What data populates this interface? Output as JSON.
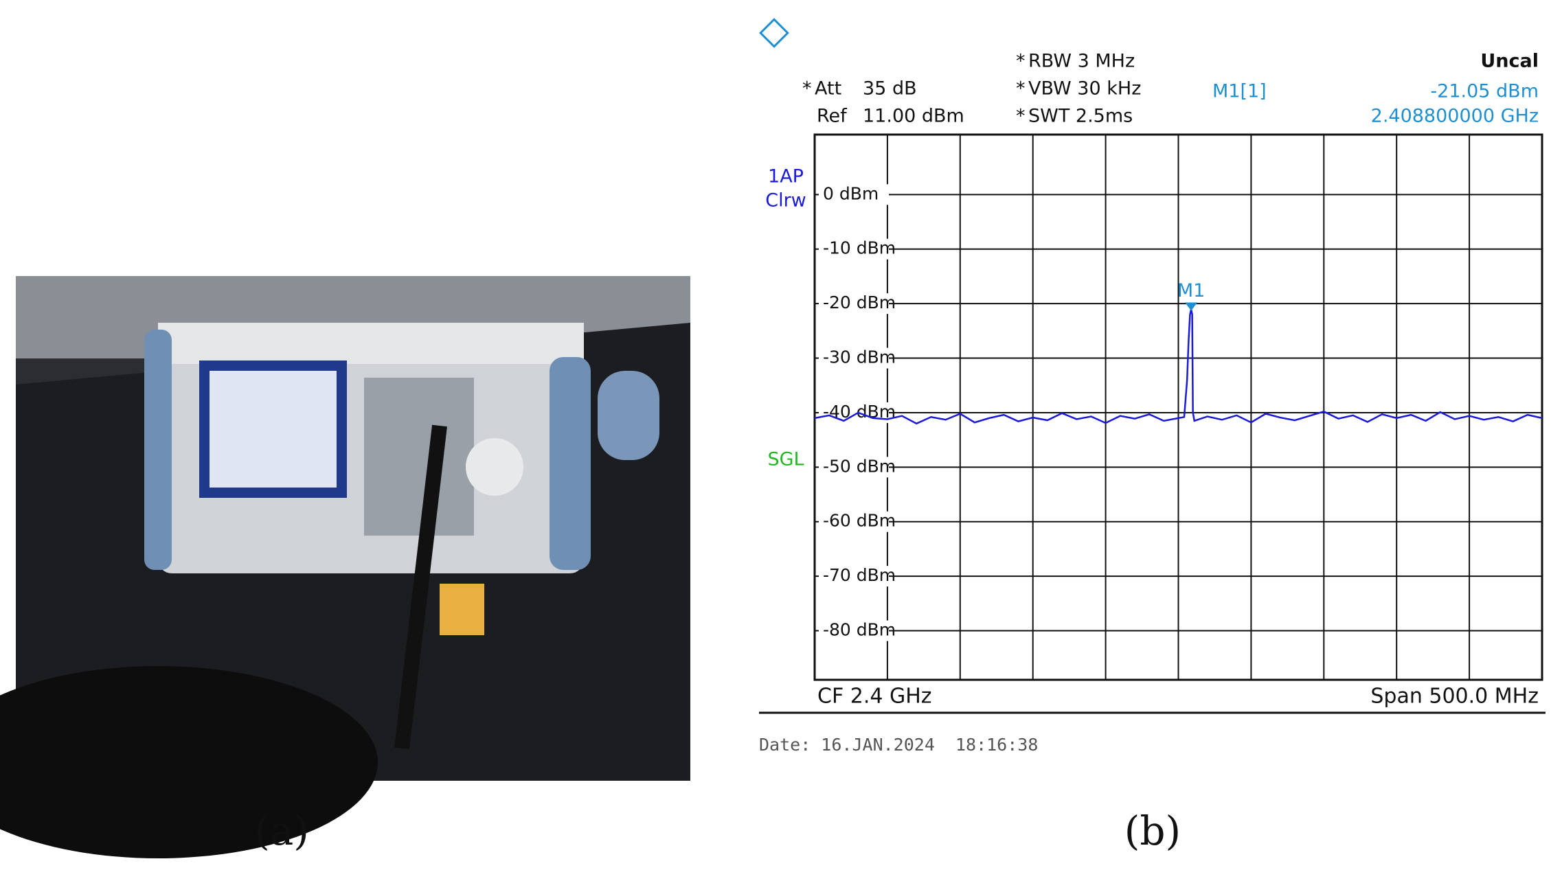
{
  "figure": {
    "panels": [
      "(a)",
      "(b)"
    ]
  },
  "chart_data": {
    "type": "line",
    "header": {
      "att": {
        "star": "*",
        "star_color": "#22b822",
        "label": "Att",
        "value": "35 dB"
      },
      "ref": {
        "label": "Ref",
        "value": "11.00 dBm"
      },
      "settings": [
        {
          "star": "*",
          "star_color": "#22b822",
          "text": "RBW 3 MHz"
        },
        {
          "star": "*",
          "star_color": "#22b822",
          "text": "VBW 30 kHz"
        },
        {
          "star": "*",
          "star_color": "#e02020",
          "text": "SWT 2.5ms"
        }
      ],
      "status": "Uncal",
      "status_color": "#e01010",
      "trace_info": [
        "1AP",
        "Clrw"
      ],
      "sweep": "SGL"
    },
    "marker": {
      "label": "M1",
      "name": "M1[1]",
      "x": 2.4088,
      "value": -21.05,
      "value_label": "-21.05 dBm",
      "x_label": "2.408800000 GHz",
      "color": "#1e8fd0"
    },
    "footer": {
      "center": "CF 2.4 GHz",
      "span": "Span 500.0 MHz",
      "date": "Date: 16.JAN.2024  18:16:38"
    },
    "xlim": [
      2.15,
      2.65
    ],
    "xgrid": [
      2.15,
      2.2,
      2.25,
      2.3,
      2.35,
      2.4,
      2.45,
      2.5,
      2.55,
      2.6,
      2.65
    ],
    "ylim": [
      -89,
      11
    ],
    "yticks": [
      {
        "value": 0,
        "label": "0 dBm"
      },
      {
        "value": -10,
        "label": "-10 dBm"
      },
      {
        "value": -20,
        "label": "-20 dBm"
      },
      {
        "value": -30,
        "label": "-30 dBm"
      },
      {
        "value": -40,
        "label": "-40 dBm"
      },
      {
        "value": -50,
        "label": "-50 dBm"
      },
      {
        "value": -60,
        "label": "-60 dBm"
      },
      {
        "value": -70,
        "label": "-70 dBm"
      },
      {
        "value": -80,
        "label": "-80 dBm"
      }
    ],
    "grid": true,
    "series": [
      {
        "name": "1AP",
        "color": "#1a1ad8",
        "x": [
          2.15,
          2.16,
          2.17,
          2.18,
          2.19,
          2.2,
          2.21,
          2.22,
          2.23,
          2.24,
          2.25,
          2.26,
          2.27,
          2.28,
          2.29,
          2.3,
          2.31,
          2.32,
          2.33,
          2.34,
          2.35,
          2.36,
          2.37,
          2.38,
          2.39,
          2.4,
          2.404,
          2.406,
          2.407,
          2.408,
          2.4088,
          2.4095,
          2.41,
          2.411,
          2.42,
          2.43,
          2.44,
          2.45,
          2.46,
          2.47,
          2.48,
          2.49,
          2.5,
          2.51,
          2.52,
          2.53,
          2.54,
          2.55,
          2.56,
          2.57,
          2.58,
          2.59,
          2.6,
          2.61,
          2.62,
          2.63,
          2.64,
          2.65
        ],
        "values": [
          -41,
          -40.5,
          -41.5,
          -40,
          -41,
          -41.2,
          -40.6,
          -42,
          -40.8,
          -41.3,
          -40.2,
          -41.8,
          -41,
          -40.4,
          -41.6,
          -40.9,
          -41.4,
          -40.1,
          -41.2,
          -40.7,
          -41.9,
          -40.6,
          -41.1,
          -40.3,
          -41.5,
          -41,
          -40.8,
          -34,
          -27,
          -22,
          -21.05,
          -22,
          -40,
          -41.5,
          -40.7,
          -41.3,
          -40.5,
          -41.8,
          -40.2,
          -40.9,
          -41.4,
          -40.6,
          -39.8,
          -41.1,
          -40.5,
          -41.7,
          -40.3,
          -41,
          -40.4,
          -41.5,
          -39.9,
          -41.2,
          -40.6,
          -41.3,
          -40.8,
          -41.6,
          -40.4,
          -41
        ]
      }
    ]
  }
}
